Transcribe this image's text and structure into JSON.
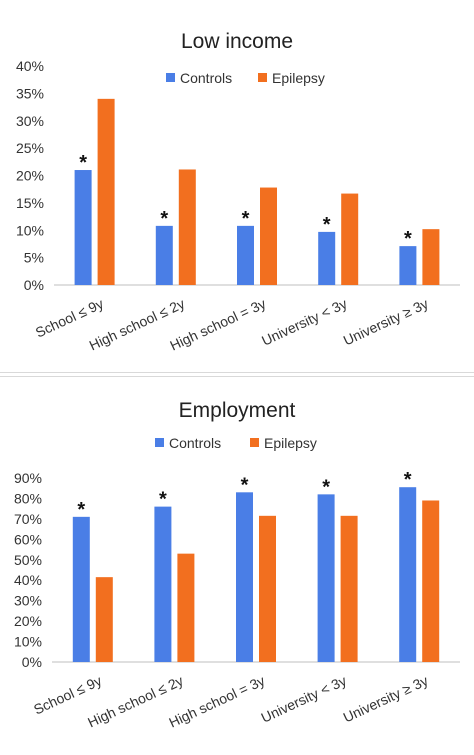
{
  "chart_data": [
    {
      "type": "bar",
      "title": "Low income",
      "categories": [
        "School ≤ 9y",
        "High school ≤ 2y",
        "High school = 3y",
        "University < 3y",
        "University ≥ 3y"
      ],
      "series": [
        {
          "name": "Controls",
          "color": "#4a7ee6",
          "values": [
            21,
            10.8,
            10.8,
            9.7,
            7.1
          ]
        },
        {
          "name": "Epilepsy",
          "color": "#f26f1f",
          "values": [
            34,
            21.1,
            17.8,
            16.7,
            10.2
          ]
        }
      ],
      "significance_marker": "*",
      "significant": [
        true,
        true,
        true,
        true,
        true
      ],
      "ylim": [
        0,
        40
      ],
      "yticks": [
        0,
        5,
        10,
        15,
        20,
        25,
        30,
        35,
        40
      ],
      "ytick_labels": [
        "0%",
        "5%",
        "10%",
        "15%",
        "20%",
        "25%",
        "30%",
        "35%",
        "40%"
      ],
      "legend": "top-center",
      "grid": false
    },
    {
      "type": "bar",
      "title": "Employment",
      "categories": [
        "School ≤ 9y",
        "High school ≤ 2y",
        "High school = 3y",
        "University < 3y",
        "University ≥ 3y"
      ],
      "series": [
        {
          "name": "Controls",
          "color": "#4a7ee6",
          "values": [
            71,
            76,
            83,
            82,
            85.5
          ]
        },
        {
          "name": "Epilepsy",
          "color": "#f26f1f",
          "values": [
            41.5,
            53,
            71.5,
            71.5,
            79
          ]
        }
      ],
      "significance_marker": "*",
      "significant": [
        true,
        true,
        true,
        true,
        true
      ],
      "ylim": [
        0,
        90
      ],
      "yticks": [
        0,
        10,
        20,
        30,
        40,
        50,
        60,
        70,
        80,
        90
      ],
      "ytick_labels": [
        "0%",
        "10%",
        "20%",
        "30%",
        "40%",
        "50%",
        "60%",
        "70%",
        "80%",
        "90%"
      ],
      "legend": "top-center",
      "grid": false
    }
  ]
}
